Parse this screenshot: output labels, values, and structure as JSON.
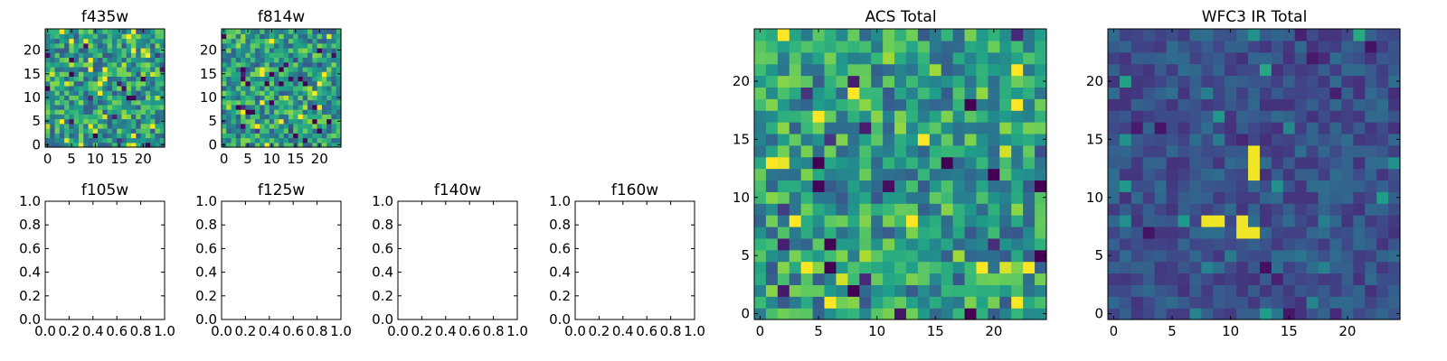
{
  "chart_data": [
    {
      "type": "heatmap",
      "title": "f435w",
      "grid_size": [
        25,
        25
      ],
      "xlim": [
        -0.5,
        24.5
      ],
      "ylim": [
        -0.5,
        24.5
      ],
      "xticks": [
        0,
        5,
        10,
        15,
        20
      ],
      "yticks": [
        0,
        5,
        10,
        15,
        20
      ],
      "colormap": "viridis",
      "values": "generated"
    },
    {
      "type": "heatmap",
      "title": "f814w",
      "grid_size": [
        25,
        25
      ],
      "xlim": [
        -0.5,
        24.5
      ],
      "ylim": [
        -0.5,
        24.5
      ],
      "xticks": [
        0,
        5,
        10,
        15,
        20
      ],
      "yticks": [
        0,
        5,
        10,
        15,
        20
      ],
      "colormap": "viridis",
      "values": "generated"
    },
    {
      "type": "scatter",
      "title": "f105w",
      "xlim": [
        0,
        1
      ],
      "ylim": [
        0,
        1
      ],
      "xticks": [
        "0.0",
        "0.2",
        "0.4",
        "0.6",
        "0.8",
        "1.0"
      ],
      "yticks": [
        "0.0",
        "0.2",
        "0.4",
        "0.6",
        "0.8",
        "1.0"
      ],
      "series": []
    },
    {
      "type": "scatter",
      "title": "f125w",
      "xlim": [
        0,
        1
      ],
      "ylim": [
        0,
        1
      ],
      "xticks": [
        "0.0",
        "0.2",
        "0.4",
        "0.6",
        "0.8",
        "1.0"
      ],
      "yticks": [
        "0.0",
        "0.2",
        "0.4",
        "0.6",
        "0.8",
        "1.0"
      ],
      "series": []
    },
    {
      "type": "scatter",
      "title": "f140w",
      "xlim": [
        0,
        1
      ],
      "ylim": [
        0,
        1
      ],
      "xticks": [
        "0.0",
        "0.2",
        "0.4",
        "0.6",
        "0.8",
        "1.0"
      ],
      "yticks": [
        "0.0",
        "0.2",
        "0.4",
        "0.6",
        "0.8",
        "1.0"
      ],
      "series": []
    },
    {
      "type": "scatter",
      "title": "f160w",
      "xlim": [
        0,
        1
      ],
      "ylim": [
        0,
        1
      ],
      "xticks": [
        "0.0",
        "0.2",
        "0.4",
        "0.6",
        "0.8",
        "1.0"
      ],
      "yticks": [
        "0.0",
        "0.2",
        "0.4",
        "0.6",
        "0.8",
        "1.0"
      ],
      "series": []
    },
    {
      "type": "heatmap",
      "title": "ACS Total",
      "grid_size": [
        25,
        25
      ],
      "xlim": [
        -0.5,
        24.5
      ],
      "ylim": [
        -0.5,
        24.5
      ],
      "xticks": [
        0,
        5,
        10,
        15,
        20
      ],
      "yticks": [
        0,
        5,
        10,
        15,
        20
      ],
      "colormap": "viridis",
      "values": "generated"
    },
    {
      "type": "heatmap",
      "title": "WFC3 IR Total",
      "grid_size": [
        25,
        25
      ],
      "xlim": [
        -0.5,
        24.5
      ],
      "ylim": [
        -0.5,
        24.5
      ],
      "xticks": [
        0,
        5,
        10,
        15,
        20
      ],
      "yticks": [
        0,
        5,
        10,
        15,
        20
      ],
      "colormap": "viridis",
      "bright_pixels": [
        [
          8,
          8
        ],
        [
          9,
          8
        ],
        [
          11,
          7
        ],
        [
          12,
          7
        ],
        [
          11,
          8
        ],
        [
          12,
          12
        ],
        [
          12,
          13
        ],
        [
          12,
          14
        ]
      ],
      "values": "generated"
    }
  ]
}
